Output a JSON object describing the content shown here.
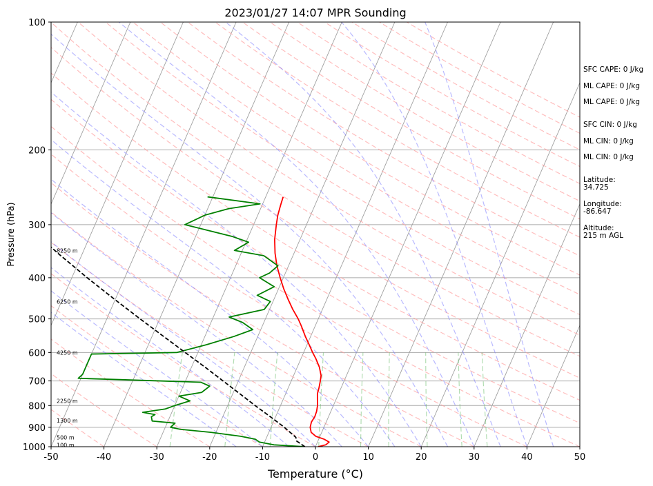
{
  "chart_data": {
    "type": "line",
    "title": "2023/01/27 14:07 MPR Sounding",
    "xlabel": "Temperature (°C)",
    "ylabel": "Pressure (hPa)",
    "xlim": [
      -50,
      50
    ],
    "ylim": [
      1000,
      100
    ],
    "y_scale": "log",
    "grid": true,
    "x_ticks": [
      -50,
      -40,
      -30,
      -20,
      -10,
      0,
      10,
      20,
      30,
      40,
      50
    ],
    "y_ticks": [
      1000,
      900,
      800,
      700,
      600,
      500,
      400,
      300,
      200,
      100
    ],
    "series": [
      {
        "color": "#ff0000",
        "points": [
          [
            1000,
            0.5
          ],
          [
            990,
            1.8
          ],
          [
            975,
            2.2
          ],
          [
            960,
            1.0
          ],
          [
            945,
            -0.8
          ],
          [
            925,
            -2.0
          ],
          [
            900,
            -2.6
          ],
          [
            875,
            -2.8
          ],
          [
            850,
            -2.6
          ],
          [
            825,
            -2.7
          ],
          [
            800,
            -3.0
          ],
          [
            775,
            -3.5
          ],
          [
            750,
            -4.0
          ],
          [
            725,
            -4.2
          ],
          [
            700,
            -4.5
          ],
          [
            680,
            -4.8
          ],
          [
            650,
            -5.8
          ],
          [
            620,
            -7.2
          ],
          [
            600,
            -8.3
          ],
          [
            575,
            -9.6
          ],
          [
            550,
            -11.0
          ],
          [
            520,
            -12.6
          ],
          [
            500,
            -13.8
          ],
          [
            475,
            -15.6
          ],
          [
            450,
            -17.3
          ],
          [
            425,
            -19.0
          ],
          [
            400,
            -20.6
          ],
          [
            375,
            -22.2
          ],
          [
            350,
            -23.6
          ],
          [
            325,
            -24.8
          ],
          [
            300,
            -25.7
          ],
          [
            285,
            -26.2
          ],
          [
            270,
            -26.5
          ],
          [
            258,
            -26.7
          ]
        ]
      },
      {
        "color": "#008000",
        "points": [
          [
            1000,
            -2.0
          ],
          [
            990,
            -8.0
          ],
          [
            975,
            -11.0
          ],
          [
            960,
            -12.0
          ],
          [
            945,
            -15.0
          ],
          [
            925,
            -21.0
          ],
          [
            910,
            -27.0
          ],
          [
            900,
            -29.0
          ],
          [
            880,
            -28.5
          ],
          [
            870,
            -33.0
          ],
          [
            850,
            -33.5
          ],
          [
            840,
            -33.0
          ],
          [
            830,
            -35.5
          ],
          [
            815,
            -31.5
          ],
          [
            800,
            -30.0
          ],
          [
            780,
            -27.5
          ],
          [
            760,
            -30.0
          ],
          [
            745,
            -26.0
          ],
          [
            720,
            -25.0
          ],
          [
            705,
            -27.0
          ],
          [
            690,
            -50.5
          ],
          [
            675,
            -50.0
          ],
          [
            605,
            -50.0
          ],
          [
            600,
            -34.0
          ],
          [
            575,
            -29.0
          ],
          [
            550,
            -24.5
          ],
          [
            530,
            -21.5
          ],
          [
            510,
            -24.0
          ],
          [
            495,
            -27.0
          ],
          [
            475,
            -21.0
          ],
          [
            455,
            -20.5
          ],
          [
            440,
            -23.5
          ],
          [
            420,
            -21.0
          ],
          [
            400,
            -24.5
          ],
          [
            390,
            -23.0
          ],
          [
            375,
            -22.0
          ],
          [
            355,
            -25.5
          ],
          [
            345,
            -31.5
          ],
          [
            330,
            -29.5
          ],
          [
            320,
            -33.0
          ],
          [
            300,
            -43.0
          ],
          [
            285,
            -40.0
          ],
          [
            275,
            -36.0
          ],
          [
            268,
            -30.5
          ],
          [
            258,
            -41.0
          ]
        ]
      },
      {
        "color": "#000000",
        "points": [
          [
            1000,
            -2.0
          ],
          [
            970,
            -4.0
          ],
          [
            950,
            -4.5
          ],
          [
            900,
            -7.5
          ],
          [
            850,
            -11.0
          ],
          [
            800,
            -14.8
          ],
          [
            750,
            -18.7
          ],
          [
            700,
            -22.9
          ],
          [
            650,
            -27.4
          ],
          [
            600,
            -32.4
          ],
          [
            550,
            -37.8
          ],
          [
            500,
            -43.7
          ],
          [
            450,
            -50.1
          ],
          [
            400,
            -57.1
          ],
          [
            350,
            -64.7
          ],
          [
            300,
            -73.0
          ]
        ]
      }
    ],
    "height_labels": [
      {
        "text": "100 m",
        "p": 990
      },
      {
        "text": "500 m",
        "p": 950
      },
      {
        "text": "1300 m",
        "p": 868
      },
      {
        "text": "2250 m",
        "p": 780
      },
      {
        "text": "4250 m",
        "p": 600
      },
      {
        "text": "6250 m",
        "p": 455
      },
      {
        "text": "8250 m",
        "p": 345
      }
    ],
    "annotations": [
      "SFC CAPE: 0 J/kg",
      "ML CAPE: 0 J/kg",
      "ML CAPE: 0 J/kg",
      "SFC CIN: 0 J/kg",
      "ML CIN: 0 J/kg",
      "ML CIN: 0 J/kg",
      "Latitude:",
      "34.725",
      "Longitude:",
      "-86.647",
      "Altitude:",
      "215 m AGL"
    ]
  }
}
